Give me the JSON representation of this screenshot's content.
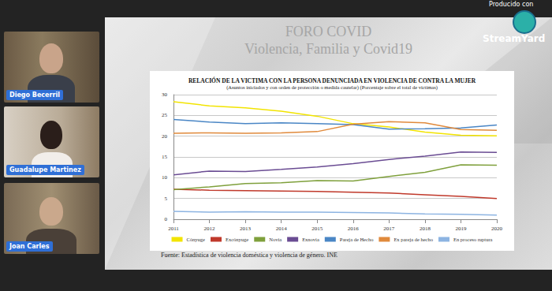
{
  "page": {
    "producer": "Producido con",
    "brand": "StreamYard",
    "slide_title": "FORO COVID",
    "slide_subtitle": "Violencia, Familia y Covid19",
    "participants": [
      "Diego Becerril",
      "Guadalupe Martinez",
      "Joan Carles"
    ]
  },
  "chart_data": {
    "type": "line",
    "title": "RELACIÓN DE LA VICTIMA CON LA PERSONA DENUNCIADA EN VIOLENCIA DE CONTRA LA MUJER",
    "subtitle": "(Asuntos iniciados y con orden de protección o medida cautelar) (Porcentaje sobre el total de víctimas)",
    "source": "Fuente: Estadística de violencia doméstica y violencia de género. INE",
    "categories": [
      "2011",
      "2012",
      "2013",
      "2014",
      "2015",
      "2016",
      "2017",
      "2018",
      "2019",
      "2020"
    ],
    "series": [
      {
        "name": "Cónyuge",
        "color": "#f2e400",
        "values": [
          28.3,
          27.3,
          26.8,
          26.0,
          24.8,
          23.0,
          22.2,
          21.0,
          20.2,
          20.1
        ]
      },
      {
        "name": "Excónyuge",
        "color": "#c0392b",
        "values": [
          7.2,
          7.0,
          6.9,
          6.8,
          6.7,
          6.5,
          6.3,
          5.9,
          5.5,
          5.0
        ]
      },
      {
        "name": "Novia",
        "color": "#7fa03c",
        "values": [
          7.1,
          7.8,
          8.6,
          8.8,
          9.3,
          9.2,
          10.3,
          11.3,
          13.1,
          13.0
        ]
      },
      {
        "name": "Exnovia",
        "color": "#6a4c93",
        "values": [
          10.7,
          11.6,
          11.5,
          12.0,
          12.6,
          13.4,
          14.4,
          15.2,
          16.2,
          16.1
        ]
      },
      {
        "name": "Pareja de Hecho",
        "color": "#4a86c5",
        "values": [
          24.0,
          23.4,
          23.0,
          23.2,
          23.0,
          22.8,
          21.7,
          21.8,
          22.0,
          22.7
        ]
      },
      {
        "name": "Ex pareja de hecho",
        "color": "#e08a3c",
        "values": [
          20.7,
          20.8,
          20.7,
          20.8,
          21.1,
          22.9,
          23.5,
          23.2,
          21.6,
          21.4
        ]
      },
      {
        "name": "En proceso ruptura",
        "color": "#8db4e2",
        "values": [
          1.9,
          1.7,
          1.8,
          1.7,
          1.7,
          1.6,
          1.5,
          1.3,
          1.2,
          1.0
        ]
      }
    ],
    "ylim": [
      0,
      30
    ],
    "yticks": [
      0,
      5,
      10,
      15,
      20,
      25,
      30
    ],
    "grid": true,
    "legend": "bottom"
  }
}
